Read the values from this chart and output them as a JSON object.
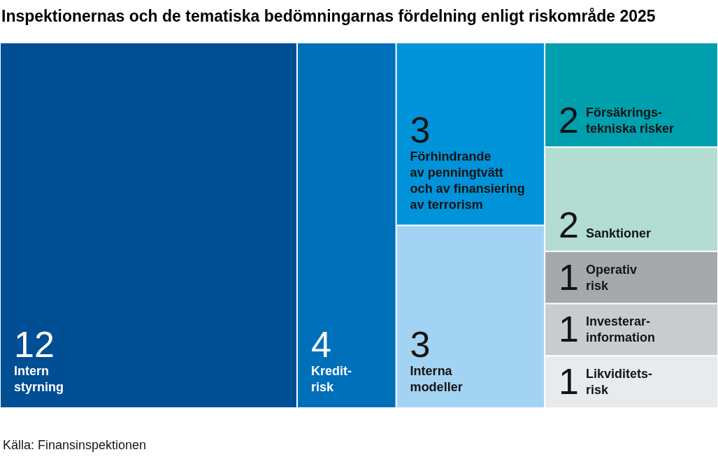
{
  "chart_data": {
    "type": "other",
    "title": "Inspektionernas och de tematiska bedömningarnas fördelning enligt riskområde 2025",
    "categories": [
      "Intern\nstyrning",
      "Kredit-\nrisk",
      "Förhindrande\nav penningtvätt\noch av finansiering\nav terrorism",
      "Interna\nmodeller",
      "Försäkrings-\ntekniska risker",
      "Sanktioner",
      "Operativ\nrisk",
      "Investerar-\ninformation",
      "Likviditets-\nrisk"
    ],
    "values": [
      12,
      4,
      3,
      3,
      2,
      2,
      1,
      1,
      1
    ],
    "colors": [
      "#004e94",
      "#006fba",
      "#0093d9",
      "#a3d3f3",
      "#009fad",
      "#b3dcd3",
      "#a6a9ac",
      "#c9cccf",
      "#e8ebee"
    ],
    "data_labels": true,
    "annotations": [
      "Källa: Finansinspektionen"
    ]
  }
}
